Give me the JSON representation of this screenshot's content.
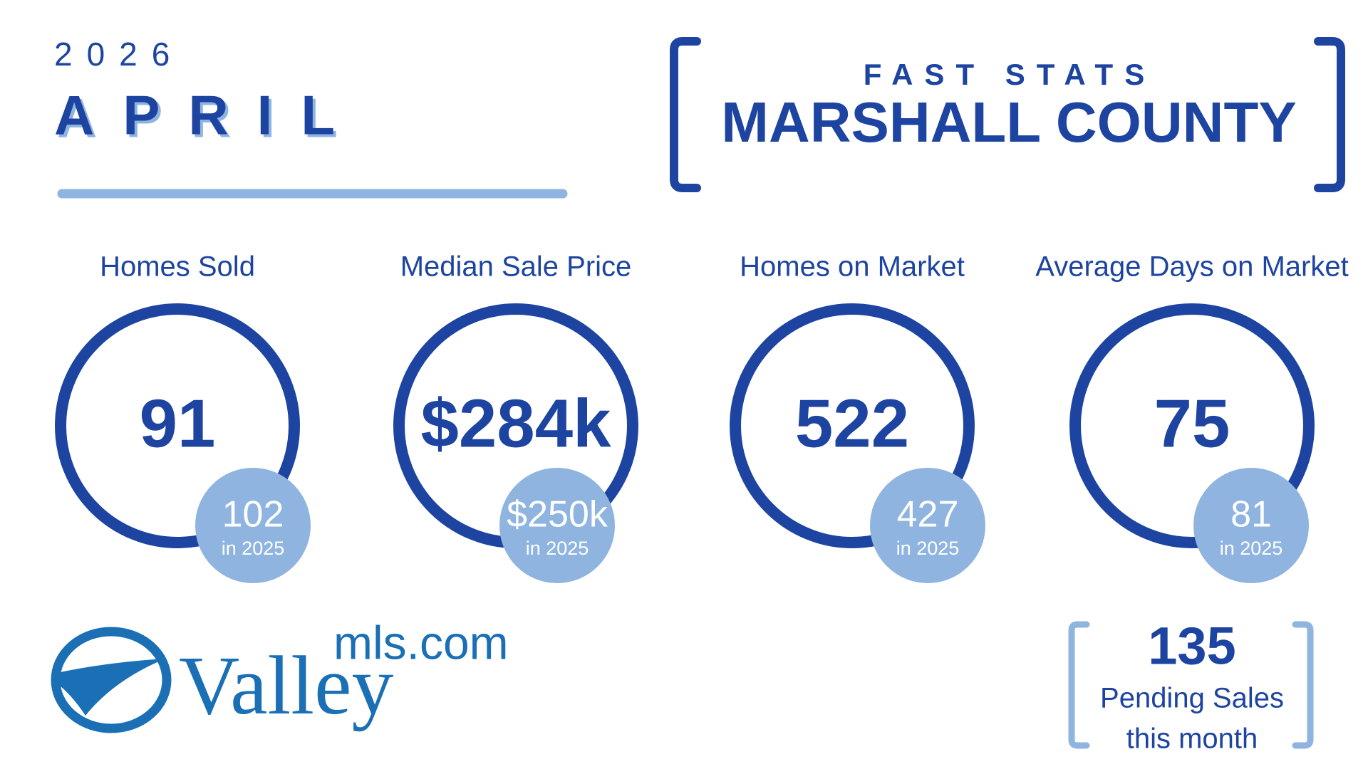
{
  "header": {
    "year": "2026",
    "month": "APRIL"
  },
  "title": {
    "kicker": "FAST STATS",
    "county": "MARSHALL COUNTY"
  },
  "stats": [
    {
      "label": "Homes Sold",
      "value": "91",
      "prior_value": "102",
      "prior_label": "in 2025"
    },
    {
      "label": "Median Sale Price",
      "value": "$284k",
      "prior_value": "$250k",
      "prior_label": "in 2025"
    },
    {
      "label": "Homes on Market",
      "value": "522",
      "prior_value": "427",
      "prior_label": "in 2025"
    },
    {
      "label": "Average Days on Market",
      "value": "75",
      "prior_value": "81",
      "prior_label": "in 2025"
    }
  ],
  "logo": {
    "domain": "mls.com",
    "brand": "Valley"
  },
  "pending": {
    "value": "135",
    "line1": "Pending Sales",
    "line2": "this month"
  }
}
